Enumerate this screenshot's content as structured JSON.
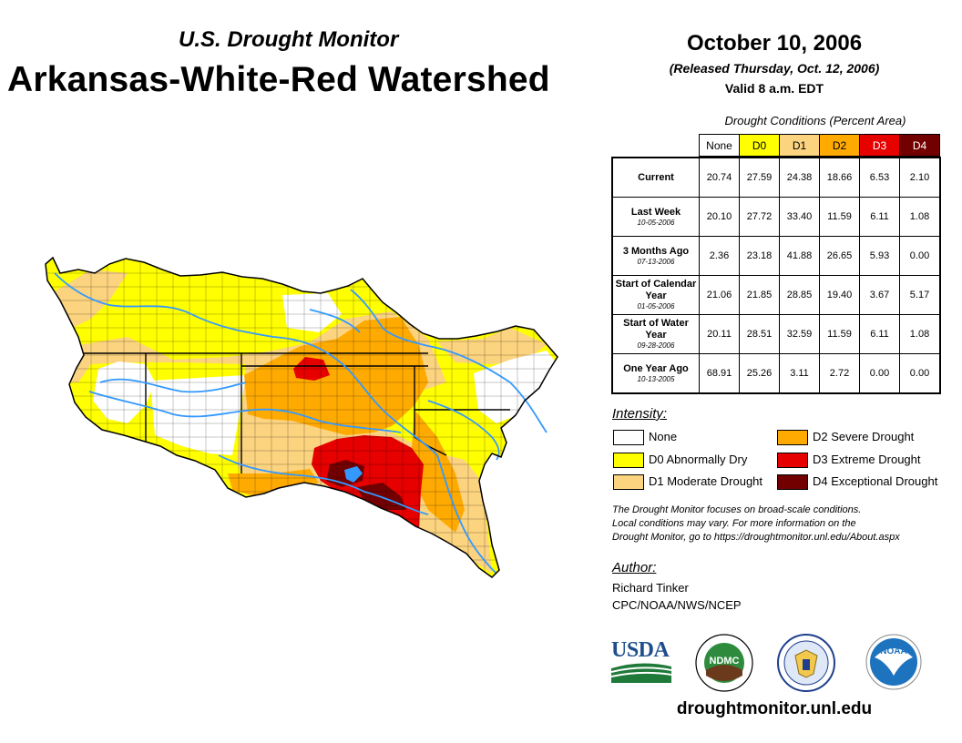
{
  "header": {
    "subtitle": "U.S. Drought Monitor",
    "title": "Arkansas-White-Red Watershed",
    "date": "October 10, 2006",
    "released": "(Released Thursday, Oct. 12, 2006)",
    "valid": "Valid 8 a.m. EDT"
  },
  "table": {
    "caption": "Drought Conditions (Percent Area)",
    "columns": [
      "None",
      "D0",
      "D1",
      "D2",
      "D3",
      "D4"
    ],
    "column_colors": [
      "#ffffff",
      "#ffff00",
      "#fcd37f",
      "#ffaa00",
      "#e60000",
      "#730000"
    ],
    "rows": [
      {
        "label": "Current",
        "date": "",
        "values": [
          "20.74",
          "27.59",
          "24.38",
          "18.66",
          "6.53",
          "2.10"
        ]
      },
      {
        "label": "Last Week",
        "date": "10-05-2006",
        "values": [
          "20.10",
          "27.72",
          "33.40",
          "11.59",
          "6.11",
          "1.08"
        ]
      },
      {
        "label": "3 Months Ago",
        "date": "07-13-2006",
        "values": [
          "2.36",
          "23.18",
          "41.88",
          "26.65",
          "5.93",
          "0.00"
        ]
      },
      {
        "label": "Start of Calendar Year",
        "date": "01-05-2006",
        "values": [
          "21.06",
          "21.85",
          "28.85",
          "19.40",
          "3.67",
          "5.17"
        ]
      },
      {
        "label": "Start of Water Year",
        "date": "09-28-2006",
        "values": [
          "20.11",
          "28.51",
          "32.59",
          "11.59",
          "6.11",
          "1.08"
        ]
      },
      {
        "label": "One Year Ago",
        "date": "10-13-2005",
        "values": [
          "68.91",
          "25.26",
          "3.11",
          "2.72",
          "0.00",
          "0.00"
        ]
      }
    ]
  },
  "legend": {
    "title": "Intensity:",
    "items": [
      {
        "label": "None",
        "color": "#ffffff"
      },
      {
        "label": "D0 Abnormally Dry",
        "color": "#ffff00"
      },
      {
        "label": "D1 Moderate Drought",
        "color": "#fcd37f"
      },
      {
        "label": "D2 Severe Drought",
        "color": "#ffaa00"
      },
      {
        "label": "D3 Extreme Drought",
        "color": "#e60000"
      },
      {
        "label": "D4 Exceptional Drought",
        "color": "#730000"
      }
    ]
  },
  "note": {
    "line1": "The Drought Monitor focuses on broad-scale conditions.",
    "line2": "Local conditions may vary. For more information on the",
    "line3": "Drought Monitor, go to https://droughtmonitor.unl.edu/About.aspx"
  },
  "author": {
    "title": "Author:",
    "name": "Richard Tinker",
    "org": "CPC/NOAA/NWS/NCEP"
  },
  "logos": {
    "usda": "USDA",
    "ndmc": "NDMC",
    "noaa": "NOAA"
  },
  "site": "droughtmonitor.unl.edu",
  "map": {
    "colors": {
      "none": "#ffffff",
      "d0": "#ffff00",
      "d1": "#fcd37f",
      "d2": "#ffaa00",
      "d3": "#e60000",
      "d4": "#730000",
      "river": "#3399ff"
    }
  }
}
